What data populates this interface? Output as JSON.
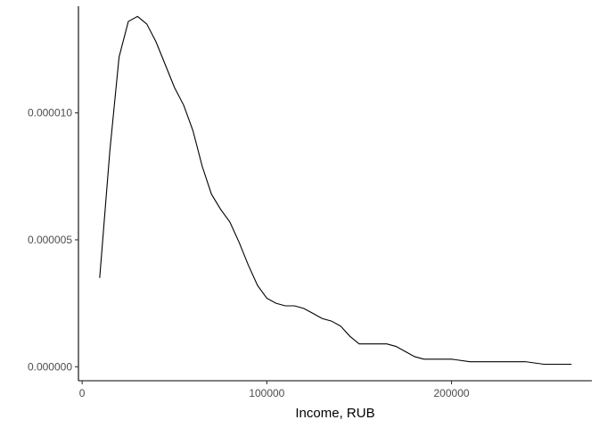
{
  "chart_data": {
    "type": "line",
    "title": "",
    "xlabel": "Income, RUB",
    "ylabel": "",
    "xlim": [
      -2000,
      276000
    ],
    "ylim": [
      -5.5e-07,
      1.42e-05
    ],
    "x_ticks": [
      0,
      100000,
      200000
    ],
    "x_tick_labels": [
      "0",
      "100000",
      "200000"
    ],
    "y_ticks": [
      0,
      5e-06,
      1e-05
    ],
    "y_tick_labels": [
      "0.000000",
      "0.000005",
      "0.000010"
    ],
    "grid": false,
    "legend": "none",
    "line_color": "#000000",
    "series": [
      {
        "x": [
          9500,
          15000,
          20000,
          25000,
          30000,
          35000,
          40000,
          45000,
          50000,
          55000,
          60000,
          65000,
          70000,
          75000,
          80000,
          85000,
          90000,
          95000,
          100000,
          105000,
          110000,
          115000,
          120000,
          125000,
          130000,
          135000,
          140000,
          145000,
          150000,
          155000,
          160000,
          165000,
          170000,
          175000,
          180000,
          185000,
          190000,
          200000,
          210000,
          220000,
          230000,
          240000,
          250000,
          258000,
          265000
        ],
        "y": [
          3.5e-06,
          8.5e-06,
          1.22e-05,
          1.36e-05,
          1.38e-05,
          1.35e-05,
          1.28e-05,
          1.19e-05,
          1.1e-05,
          1.03e-05,
          9.3e-06,
          7.9e-06,
          6.8e-06,
          6.2e-06,
          5.7e-06,
          4.9e-06,
          4e-06,
          3.2e-06,
          2.7e-06,
          2.5e-06,
          2.4e-06,
          2.4e-06,
          2.3e-06,
          2.1e-06,
          1.9e-06,
          1.8e-06,
          1.6e-06,
          1.2e-06,
          9e-07,
          9e-07,
          9e-07,
          9e-07,
          8e-07,
          6e-07,
          4e-07,
          3e-07,
          3e-07,
          3e-07,
          2e-07,
          2e-07,
          2e-07,
          2e-07,
          1e-07,
          1e-07,
          1e-07
        ]
      }
    ]
  }
}
